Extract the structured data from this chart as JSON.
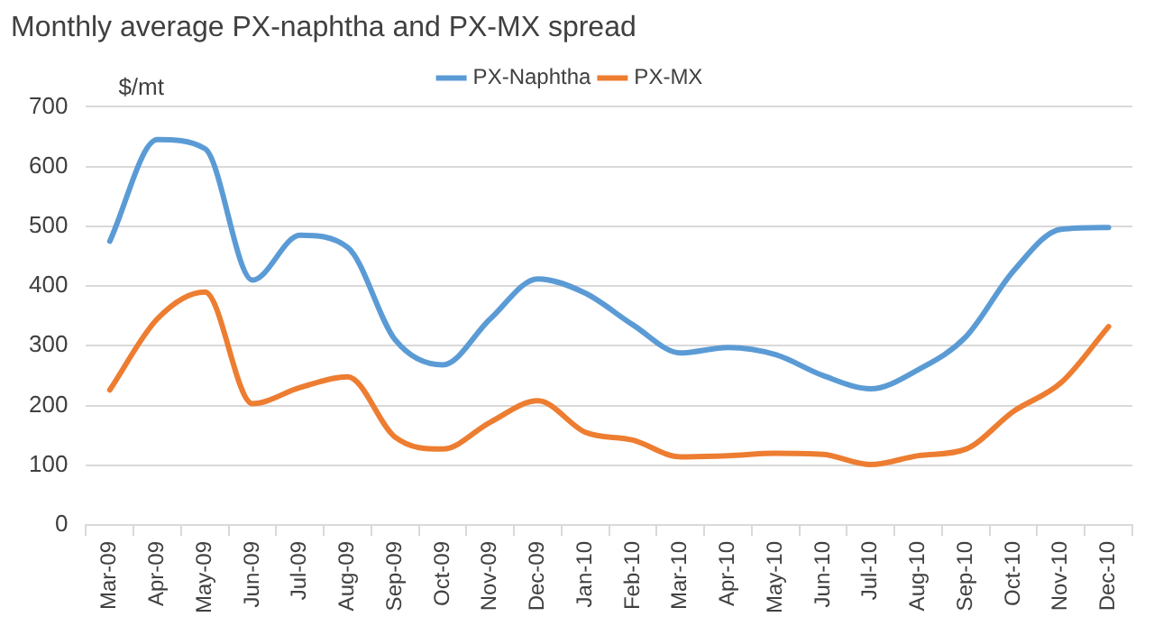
{
  "chart_data": {
    "type": "line",
    "title": "Monthly average PX-naphtha and PX-MX spread",
    "ylabel": "$/mt",
    "categories": [
      "Mar-09",
      "Apr-09",
      "May-09",
      "Jun-09",
      "Jul-09",
      "Aug-09",
      "Sep-09",
      "Oct-09",
      "Nov-09",
      "Dec-09",
      "Jan-10",
      "Feb-10",
      "Mar-10",
      "Apr-10",
      "May-10",
      "Jun-10",
      "Jul-10",
      "Aug-10",
      "Sep-10",
      "Oct-10",
      "Nov-10",
      "Dec-10"
    ],
    "series": [
      {
        "name": "PX-Naphtha",
        "color": "#5b9bd5",
        "values": [
          475,
          645,
          630,
          410,
          485,
          465,
          310,
          268,
          345,
          412,
          388,
          335,
          288,
          297,
          285,
          250,
          228,
          260,
          315,
          425,
          495,
          498
        ]
      },
      {
        "name": "PX-MX",
        "color": "#ed7d31",
        "values": [
          226,
          345,
          390,
          203,
          230,
          248,
          147,
          127,
          172,
          208,
          155,
          142,
          114,
          116,
          120,
          118,
          101,
          116,
          127,
          190,
          238,
          332
        ]
      }
    ],
    "ylim": [
      0,
      700
    ],
    "yticks": [
      0,
      100,
      200,
      300,
      400,
      500,
      600,
      700
    ],
    "grid": "y",
    "legend": "top",
    "marker": "none",
    "line_style": "solid"
  }
}
